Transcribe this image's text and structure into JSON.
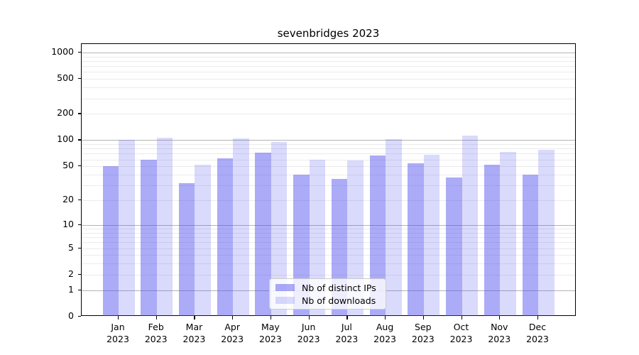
{
  "title": "sevenbridges 2023",
  "colors": {
    "bar_distinct_ips": "rgba(68,68,238,0.45)",
    "bar_downloads": "rgba(68,68,238,0.2)",
    "bar_distinct_ips_hex": "#aaaaf7",
    "bar_downloads_hex": "#dadafa",
    "grid_major": "#b4b4b4",
    "grid_minor": "#ebebeb",
    "spine": "#000000",
    "background": "#ffffff"
  },
  "legend": {
    "items": [
      {
        "label": "Nb of distinct IPs",
        "color_key": "bar_distinct_ips"
      },
      {
        "label": "Nb of downloads",
        "color_key": "bar_downloads"
      }
    ]
  },
  "chart_data": {
    "type": "bar",
    "title": "sevenbridges 2023",
    "categories": [
      "Jan 2023",
      "Feb 2023",
      "Mar 2023",
      "Apr 2023",
      "May 2023",
      "Jun 2023",
      "Jul 2023",
      "Aug 2023",
      "Sep 2023",
      "Oct 2023",
      "Nov 2023",
      "Dec 2023"
    ],
    "series": [
      {
        "name": "Nb of distinct IPs",
        "values": [
          50,
          60,
          32,
          62,
          72,
          40,
          36,
          67,
          54,
          37,
          52,
          40
        ]
      },
      {
        "name": "Nb of downloads",
        "values": [
          100,
          106,
          52,
          104,
          95,
          60,
          59,
          103,
          68,
          113,
          73,
          78
        ]
      }
    ],
    "xlabel": "",
    "ylabel": "",
    "yscale": "log1p",
    "ylim": [
      0,
      1250
    ],
    "y_ticks": [
      0,
      1,
      2,
      5,
      10,
      20,
      50,
      100,
      200,
      500,
      1000
    ],
    "y_minor_ticks": [
      3,
      4,
      6,
      7,
      8,
      9,
      30,
      40,
      60,
      70,
      80,
      90,
      300,
      400,
      600,
      700,
      800,
      900
    ],
    "grid": "on",
    "legend_position": "lower center"
  }
}
